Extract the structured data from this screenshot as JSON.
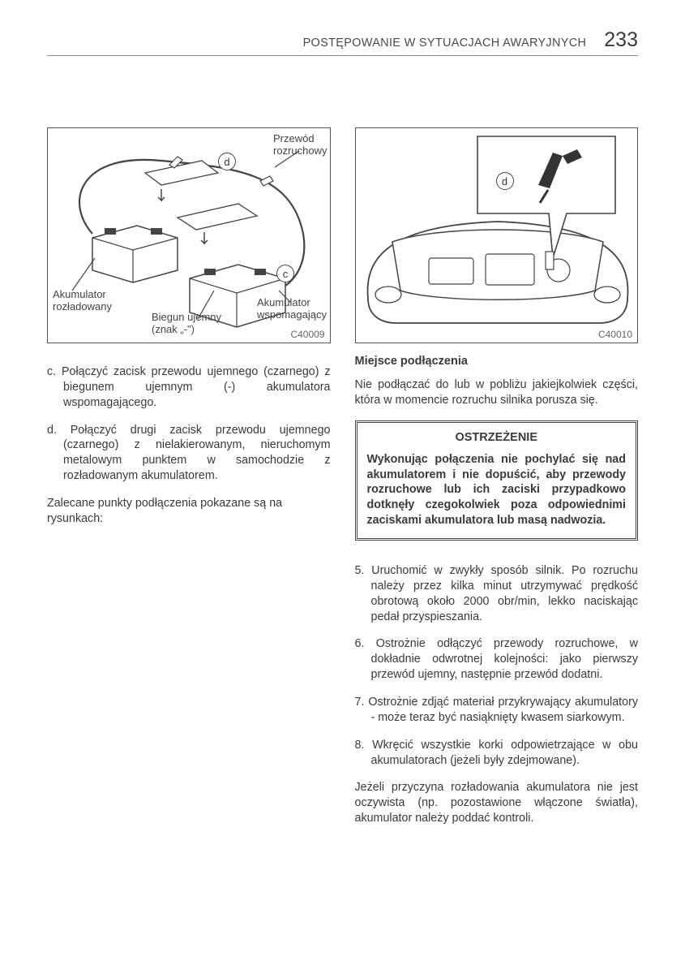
{
  "header": {
    "title": "POSTĘPOWANIE W SYTUACJACH AWARYJNYCH",
    "page_number": "233"
  },
  "left": {
    "figure": {
      "code": "C40009",
      "labels": {
        "cable": "Przewód\nrozruchowy",
        "discharged": "Akumulator\nrozładowany",
        "negative": "Biegun ujemny\n(znak „-\")",
        "booster": "Akumulator\nwspomagający"
      },
      "marks": {
        "d": "d",
        "c": "c"
      }
    },
    "items": {
      "c": "c. Połączyć zacisk przewodu ujemnego (czarnego) z biegunem ujemnym (-) akumulatora wspomagającego.",
      "d": "d. Połączyć drugi zacisk przewodu ujemnego (czarnego) z nielakierowanym, nieruchomym metalowym punktem w samochodzie z rozładowanym akumulatorem."
    },
    "note": "Zalecane punkty podłączenia pokazane są na rysunkach:"
  },
  "right": {
    "figure": {
      "code": "C40010",
      "marks": {
        "d": "d"
      }
    },
    "subhead": "Miejsce podłączenia",
    "lead": "Nie podłączać do lub w pobliżu jakiejkolwiek części, która w momencie rozruchu silnika porusza się.",
    "warning": {
      "title": "OSTRZEŻENIE",
      "body": "Wykonując połączenia nie pochylać się nad akumulatorem i nie dopuścić, aby przewody rozruchowe lub ich zaciski przypadkowo dotknęły czegokolwiek poza odpowiednimi zaciskami akumulatora lub masą nadwozia."
    },
    "steps": {
      "s5": "5. Uruchomić w zwykły sposób silnik. Po rozruchu należy przez kilka minut utrzymywać prędkość obrotową około 2000 obr/min, lekko naciskając pedał przyspieszania.",
      "s6": "6. Ostrożnie odłączyć przewody rozruchowe, w dokładnie odwrotnej kolejności: jako pierwszy przewód ujemny, następnie przewód dodatni.",
      "s7": "7. Ostrożnie zdjąć materiał przykrywający akumulatory - może teraz być nasiąknięty kwasem siarkowym.",
      "s8": "8. Wkręcić wszystkie korki odpowietrzające w obu akumulatorach (jeżeli były zdejmowane)."
    },
    "tail": "Jeżeli przyczyna rozładowania akumulatora nie jest oczywista (np. pozostawione włączone światła), akumulator należy poddać kontroli."
  },
  "colors": {
    "text": "#3a3a3a",
    "border": "#555555",
    "line": "#444444",
    "bg": "#ffffff"
  }
}
